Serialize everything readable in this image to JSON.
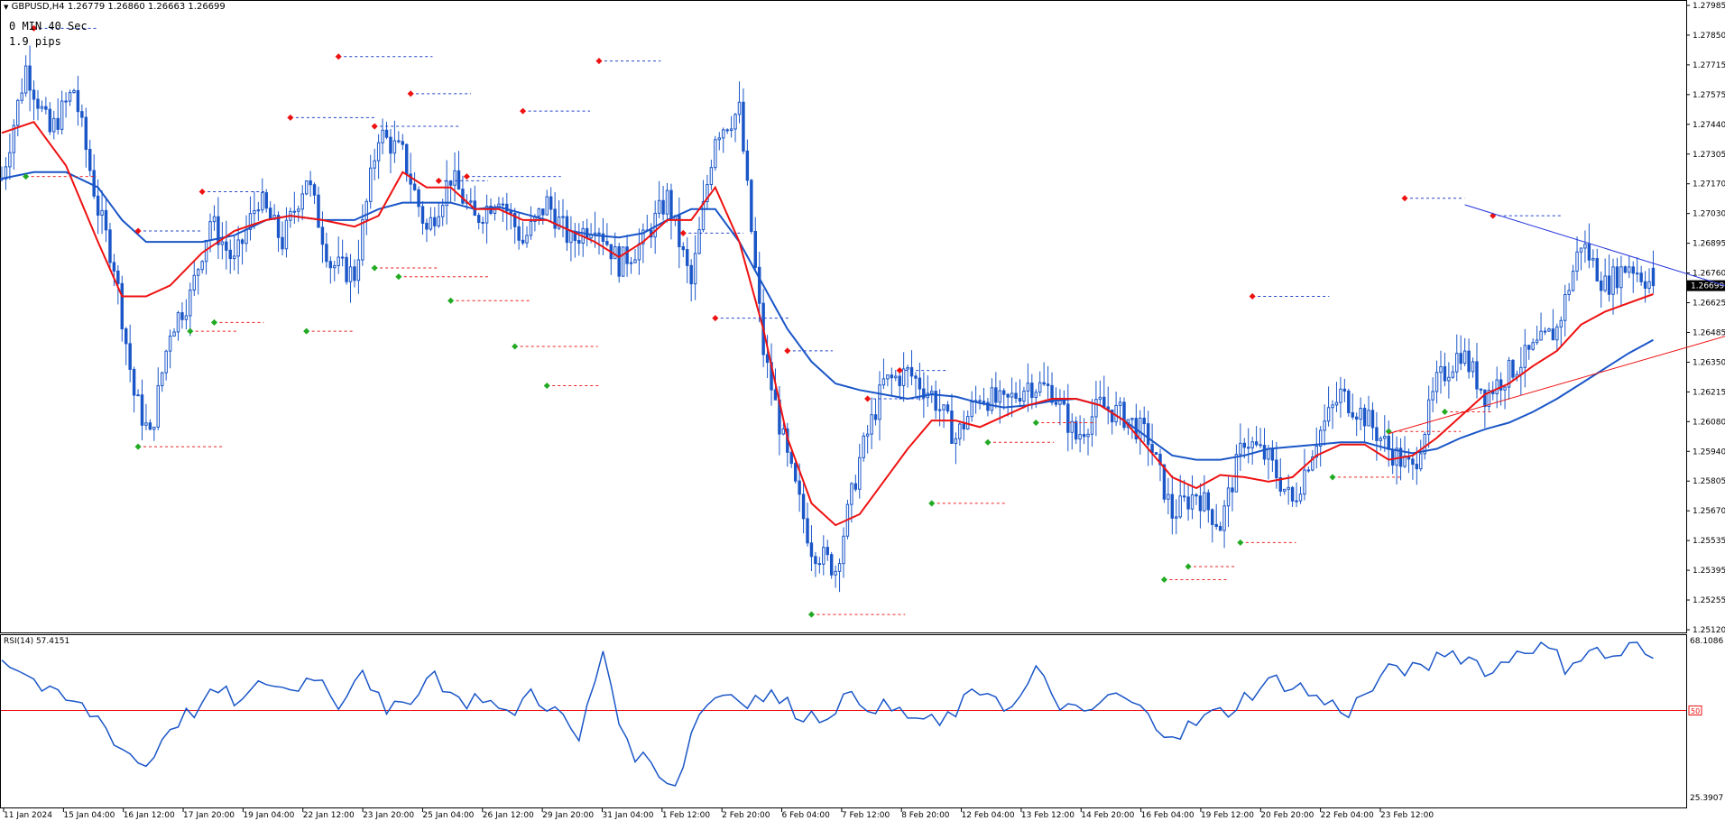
{
  "header": {
    "symbol_line": "GBPUSD,H4  1.26779 1.26860 1.26663 1.26699",
    "timer": "0 MIN 40 Sec",
    "spread": "1.9 pips"
  },
  "price_axis": {
    "labels": [
      "1.27985",
      "1.27850",
      "1.27715",
      "1.27575",
      "1.27440",
      "1.27305",
      "1.27170",
      "1.27030",
      "1.26895",
      "1.26760",
      "1.26625",
      "1.26485",
      "1.26350",
      "1.26215",
      "1.26080",
      "1.25940",
      "1.25805",
      "1.25670",
      "1.25535",
      "1.25395",
      "1.25255",
      "1.25120"
    ],
    "current_price": "1.26699",
    "ylim": [
      1.2512,
      1.27985
    ]
  },
  "rsi": {
    "label": "RSI(14) 57.4151",
    "max_label": "68.1086",
    "min_label": "25.3907",
    "level_label": "50",
    "ylim": [
      25.3907,
      68.1086
    ]
  },
  "time_axis": {
    "labels": [
      "11 Jan 2024",
      "15 Jan 04:00",
      "16 Jan 12:00",
      "17 Jan 20:00",
      "19 Jan 04:00",
      "22 Jan 12:00",
      "23 Jan 20:00",
      "25 Jan 04:00",
      "26 Jan 12:00",
      "29 Jan 20:00",
      "31 Jan 04:00",
      "1 Feb 12:00",
      "2 Feb 20:00",
      "6 Feb 04:00",
      "7 Feb 12:00",
      "8 Feb 20:00",
      "12 Feb 04:00",
      "13 Feb 12:00",
      "14 Feb 20:00",
      "16 Feb 04:00",
      "19 Feb 12:00",
      "20 Feb 20:00",
      "22 Feb 04:00",
      "23 Feb 12:00"
    ]
  },
  "colors": {
    "bull": "#1a56c8",
    "bear": "#1a56c8",
    "ma_fast": "#ee1111",
    "ma_slow": "#1a56c8",
    "rsi_line": "#1a56c8",
    "rsi_level": "#ee1111",
    "resistance_line": "#2233dd",
    "support_line": "#ee1111",
    "swing_high": "#ee1111",
    "swing_low": "#22aa22"
  },
  "chart_data": {
    "type": "candlestick",
    "symbol": "GBPUSD",
    "timeframe": "H4",
    "ohlc": {
      "open": 1.26779,
      "high": 1.2686,
      "low": 1.26663,
      "close": 1.26699
    },
    "close_path": [
      [
        0,
        1.2719
      ],
      [
        6,
        1.277
      ],
      [
        12,
        1.274
      ],
      [
        18,
        1.276
      ],
      [
        24,
        1.2705
      ],
      [
        28,
        1.268
      ],
      [
        33,
        1.262
      ],
      [
        37,
        1.26
      ],
      [
        42,
        1.265
      ],
      [
        47,
        1.2665
      ],
      [
        52,
        1.27
      ],
      [
        58,
        1.268
      ],
      [
        64,
        1.271
      ],
      [
        70,
        1.269
      ],
      [
        76,
        1.272
      ],
      [
        82,
        1.268
      ],
      [
        88,
        1.2675
      ],
      [
        94,
        1.274
      ],
      [
        100,
        1.273
      ],
      [
        106,
        1.2695
      ],
      [
        112,
        1.272
      ],
      [
        118,
        1.27
      ],
      [
        124,
        1.2712
      ],
      [
        130,
        1.269
      ],
      [
        136,
        1.2708
      ],
      [
        142,
        1.269
      ],
      [
        148,
        1.27
      ],
      [
        154,
        1.268
      ],
      [
        160,
        1.269
      ],
      [
        166,
        1.271
      ],
      [
        172,
        1.267
      ],
      [
        178,
        1.274
      ],
      [
        184,
        1.275
      ],
      [
        190,
        1.264
      ],
      [
        196,
        1.259
      ],
      [
        202,
        1.255
      ],
      [
        208,
        1.254
      ],
      [
        214,
        1.259
      ],
      [
        220,
        1.2625
      ],
      [
        226,
        1.263
      ],
      [
        232,
        1.262
      ],
      [
        238,
        1.26
      ],
      [
        244,
        1.262
      ],
      [
        250,
        1.2615
      ],
      [
        256,
        1.2625
      ],
      [
        262,
        1.2622
      ],
      [
        268,
        1.26
      ],
      [
        274,
        1.2615
      ],
      [
        280,
        1.261
      ],
      [
        286,
        1.26
      ],
      [
        292,
        1.2565
      ],
      [
        298,
        1.2575
      ],
      [
        304,
        1.256
      ],
      [
        310,
        1.26
      ],
      [
        316,
        1.259
      ],
      [
        322,
        1.257
      ],
      [
        328,
        1.26
      ],
      [
        334,
        1.262
      ],
      [
        340,
        1.261
      ],
      [
        346,
        1.2595
      ],
      [
        352,
        1.2585
      ],
      [
        358,
        1.2625
      ],
      [
        364,
        1.264
      ],
      [
        370,
        1.262
      ],
      [
        376,
        1.263
      ],
      [
        382,
        1.264
      ],
      [
        388,
        1.265
      ],
      [
        394,
        1.269
      ],
      [
        400,
        1.267
      ],
      [
        406,
        1.268
      ],
      [
        412,
        1.267
      ]
    ],
    "ma_fast": [
      [
        0,
        1.274
      ],
      [
        8,
        1.2745
      ],
      [
        16,
        1.2725
      ],
      [
        24,
        1.269
      ],
      [
        30,
        1.2665
      ],
      [
        36,
        1.2665
      ],
      [
        42,
        1.267
      ],
      [
        50,
        1.2685
      ],
      [
        58,
        1.2695
      ],
      [
        66,
        1.27
      ],
      [
        72,
        1.2702
      ],
      [
        80,
        1.27
      ],
      [
        88,
        1.2697
      ],
      [
        94,
        1.2702
      ],
      [
        100,
        1.2722
      ],
      [
        106,
        1.2715
      ],
      [
        112,
        1.2715
      ],
      [
        118,
        1.2705
      ],
      [
        124,
        1.2705
      ],
      [
        130,
        1.27
      ],
      [
        136,
        1.27
      ],
      [
        142,
        1.2695
      ],
      [
        148,
        1.269
      ],
      [
        154,
        1.2683
      ],
      [
        160,
        1.269
      ],
      [
        166,
        1.27
      ],
      [
        172,
        1.27
      ],
      [
        178,
        1.2715
      ],
      [
        184,
        1.269
      ],
      [
        190,
        1.265
      ],
      [
        196,
        1.26
      ],
      [
        202,
        1.257
      ],
      [
        208,
        1.256
      ],
      [
        214,
        1.2565
      ],
      [
        220,
        1.258
      ],
      [
        226,
        1.2595
      ],
      [
        232,
        1.2608
      ],
      [
        238,
        1.2608
      ],
      [
        244,
        1.2605
      ],
      [
        250,
        1.261
      ],
      [
        256,
        1.2615
      ],
      [
        262,
        1.2618
      ],
      [
        268,
        1.2618
      ],
      [
        274,
        1.2615
      ],
      [
        280,
        1.2608
      ],
      [
        286,
        1.2595
      ],
      [
        292,
        1.2582
      ],
      [
        298,
        1.2577
      ],
      [
        304,
        1.2583
      ],
      [
        310,
        1.2582
      ],
      [
        316,
        1.258
      ],
      [
        322,
        1.2582
      ],
      [
        328,
        1.2592
      ],
      [
        334,
        1.2597
      ],
      [
        340,
        1.2597
      ],
      [
        346,
        1.259
      ],
      [
        352,
        1.2592
      ],
      [
        358,
        1.26
      ],
      [
        364,
        1.261
      ],
      [
        370,
        1.262
      ],
      [
        376,
        1.2625
      ],
      [
        382,
        1.2633
      ],
      [
        388,
        1.264
      ],
      [
        394,
        1.2652
      ],
      [
        400,
        1.2658
      ],
      [
        406,
        1.2662
      ],
      [
        412,
        1.2666
      ]
    ],
    "ma_slow": [
      [
        0,
        1.2719
      ],
      [
        8,
        1.2722
      ],
      [
        16,
        1.2722
      ],
      [
        24,
        1.2715
      ],
      [
        30,
        1.27
      ],
      [
        36,
        1.269
      ],
      [
        42,
        1.269
      ],
      [
        50,
        1.269
      ],
      [
        58,
        1.2693
      ],
      [
        66,
        1.27
      ],
      [
        72,
        1.2702
      ],
      [
        80,
        1.27
      ],
      [
        88,
        1.27
      ],
      [
        94,
        1.2705
      ],
      [
        100,
        1.2708
      ],
      [
        106,
        1.2708
      ],
      [
        112,
        1.2708
      ],
      [
        118,
        1.2705
      ],
      [
        124,
        1.2706
      ],
      [
        130,
        1.2703
      ],
      [
        136,
        1.27
      ],
      [
        142,
        1.2695
      ],
      [
        148,
        1.2693
      ],
      [
        154,
        1.2692
      ],
      [
        160,
        1.2694
      ],
      [
        166,
        1.27
      ],
      [
        172,
        1.2705
      ],
      [
        178,
        1.2705
      ],
      [
        184,
        1.269
      ],
      [
        190,
        1.267
      ],
      [
        196,
        1.265
      ],
      [
        202,
        1.2635
      ],
      [
        208,
        1.2625
      ],
      [
        214,
        1.2622
      ],
      [
        220,
        1.262
      ],
      [
        226,
        1.2618
      ],
      [
        232,
        1.262
      ],
      [
        238,
        1.2619
      ],
      [
        244,
        1.2616
      ],
      [
        250,
        1.2614
      ],
      [
        256,
        1.2615
      ],
      [
        262,
        1.2617
      ],
      [
        268,
        1.2618
      ],
      [
        274,
        1.2615
      ],
      [
        280,
        1.2608
      ],
      [
        286,
        1.26
      ],
      [
        292,
        1.2592
      ],
      [
        298,
        1.259
      ],
      [
        304,
        1.259
      ],
      [
        310,
        1.2592
      ],
      [
        316,
        1.2595
      ],
      [
        322,
        1.2596
      ],
      [
        328,
        1.2597
      ],
      [
        334,
        1.2598
      ],
      [
        340,
        1.2598
      ],
      [
        346,
        1.2595
      ],
      [
        352,
        1.2593
      ],
      [
        358,
        1.2595
      ],
      [
        364,
        1.26
      ],
      [
        370,
        1.2604
      ],
      [
        376,
        1.2607
      ],
      [
        382,
        1.2612
      ],
      [
        388,
        1.2618
      ],
      [
        394,
        1.2625
      ],
      [
        400,
        1.2632
      ],
      [
        406,
        1.2639
      ],
      [
        412,
        1.2645
      ]
    ],
    "resistance_trendline": [
      [
        365,
        1.2707
      ],
      [
        470,
        1.2647
      ]
    ],
    "support_trendline": [
      [
        346,
        1.2602
      ],
      [
        470,
        1.2668
      ]
    ],
    "swing_highs": [
      [
        8,
        1.2788
      ],
      [
        34,
        1.2695
      ],
      [
        50,
        1.2713
      ],
      [
        72,
        1.2747
      ],
      [
        84,
        1.2775
      ],
      [
        93,
        1.2743
      ],
      [
        102,
        1.2758
      ],
      [
        109,
        1.2718
      ],
      [
        116,
        1.272
      ],
      [
        130,
        1.275
      ],
      [
        149,
        1.2773
      ],
      [
        170,
        1.2694
      ],
      [
        178,
        1.2655
      ],
      [
        196,
        1.264
      ],
      [
        216,
        1.2618
      ],
      [
        224,
        1.2631
      ],
      [
        312,
        1.2665
      ],
      [
        350,
        1.271
      ],
      [
        372,
        1.2702
      ]
    ],
    "swing_lows": [
      [
        6,
        1.272
      ],
      [
        34,
        1.2596
      ],
      [
        47,
        1.2649
      ],
      [
        53,
        1.2653
      ],
      [
        76,
        1.2649
      ],
      [
        93,
        1.2678
      ],
      [
        99,
        1.2674
      ],
      [
        112,
        1.2663
      ],
      [
        128,
        1.2642
      ],
      [
        136,
        1.2624
      ],
      [
        202,
        1.2519
      ],
      [
        232,
        1.257
      ],
      [
        246,
        1.2598
      ],
      [
        258,
        1.2607
      ],
      [
        290,
        1.2535
      ],
      [
        296,
        1.2541
      ],
      [
        309,
        1.2552
      ],
      [
        332,
        1.2582
      ],
      [
        346,
        1.2603
      ],
      [
        360,
        1.2612
      ]
    ],
    "rsi_values": [
      [
        0,
        64
      ],
      [
        6,
        60
      ],
      [
        12,
        54
      ],
      [
        18,
        52
      ],
      [
        24,
        48
      ],
      [
        30,
        40
      ],
      [
        36,
        35
      ],
      [
        42,
        46
      ],
      [
        48,
        50
      ],
      [
        54,
        55
      ],
      [
        60,
        52
      ],
      [
        66,
        58
      ],
      [
        72,
        55
      ],
      [
        78,
        60
      ],
      [
        84,
        52
      ],
      [
        90,
        62
      ],
      [
        96,
        48
      ],
      [
        102,
        54
      ],
      [
        108,
        60
      ],
      [
        114,
        52
      ],
      [
        120,
        54
      ],
      [
        126,
        48
      ],
      [
        132,
        55
      ],
      [
        138,
        50
      ],
      [
        144,
        42
      ],
      [
        150,
        66
      ],
      [
        156,
        40
      ],
      [
        162,
        36
      ],
      [
        168,
        30
      ],
      [
        174,
        50
      ],
      [
        180,
        55
      ],
      [
        186,
        53
      ],
      [
        192,
        54
      ],
      [
        198,
        50
      ],
      [
        204,
        48
      ],
      [
        210,
        53
      ],
      [
        216,
        52
      ],
      [
        222,
        50
      ],
      [
        228,
        48
      ],
      [
        234,
        46
      ],
      [
        240,
        52
      ],
      [
        246,
        56
      ],
      [
        252,
        50
      ],
      [
        258,
        60
      ],
      [
        264,
        52
      ],
      [
        270,
        48
      ],
      [
        276,
        54
      ],
      [
        282,
        52
      ],
      [
        288,
        46
      ],
      [
        294,
        44
      ],
      [
        300,
        48
      ],
      [
        306,
        50
      ],
      [
        312,
        55
      ],
      [
        318,
        58
      ],
      [
        324,
        56
      ],
      [
        330,
        52
      ],
      [
        336,
        50
      ],
      [
        342,
        56
      ],
      [
        348,
        62
      ],
      [
        354,
        60
      ],
      [
        360,
        66
      ],
      [
        366,
        64
      ],
      [
        372,
        60
      ],
      [
        378,
        66
      ],
      [
        384,
        68
      ],
      [
        390,
        62
      ],
      [
        396,
        66
      ],
      [
        402,
        64
      ],
      [
        408,
        68
      ],
      [
        412,
        62
      ]
    ],
    "rsi_level": 50
  }
}
